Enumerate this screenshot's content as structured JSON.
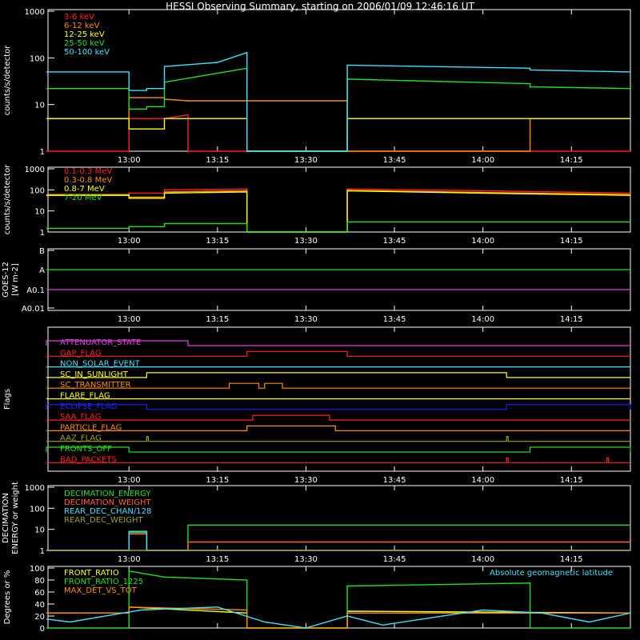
{
  "title": "HESSI Observing Summary, starting on 2006/01/09 12:46:16 UT",
  "time_ticks": [
    "13:00",
    "13:15",
    "13:30",
    "13:45",
    "14:00",
    "14:15"
  ],
  "chart_data": [
    {
      "type": "line",
      "name": "panel-counts-low",
      "ylabel": "counts/s/detector",
      "yscale": "log",
      "ylim": [
        1,
        1000
      ],
      "ytick_labels": [
        "1",
        "10",
        "100",
        "1000"
      ],
      "x_ticks": [
        "13:00",
        "13:15",
        "13:30",
        "13:45",
        "14:00",
        "14:15"
      ],
      "series": [
        {
          "name": "3-6 keV",
          "color": "#ff2020",
          "x": [
            "12:46",
            "13:00",
            "13:00",
            "13:06",
            "13:06",
            "13:10",
            "13:10",
            "13:16",
            "13:20",
            "13:37",
            "13:37",
            "13:45",
            "14:00",
            "14:08",
            "14:08",
            "14:15",
            "14:25"
          ],
          "y": [
            1,
            1,
            5,
            5,
            5,
            6,
            1,
            1,
            1,
            1,
            1,
            1,
            1,
            1,
            1,
            1,
            1
          ]
        },
        {
          "name": "6-12 keV",
          "color": "#ff8c00",
          "x": [
            "12:46",
            "13:00",
            "13:00",
            "13:06",
            "13:06",
            "13:10",
            "13:20",
            "13:37",
            "13:37",
            "14:08",
            "14:08",
            "14:25"
          ],
          "y": [
            5,
            5,
            14,
            14,
            13,
            12,
            12,
            12,
            1,
            1,
            5,
            5
          ]
        },
        {
          "name": "12-25 keV",
          "color": "#ffff00",
          "x": [
            "12:46",
            "13:00",
            "13:00",
            "13:06",
            "13:06",
            "13:20",
            "13:20",
            "13:37",
            "13:37",
            "13:50",
            "14:08",
            "14:25"
          ],
          "y": [
            5,
            5,
            3,
            3,
            5,
            5,
            1,
            1,
            5,
            5,
            5,
            5
          ]
        },
        {
          "name": "25-50 keV",
          "color": "#20e020",
          "x": [
            "12:46",
            "13:00",
            "13:00",
            "13:03",
            "13:03",
            "13:06",
            "13:06",
            "13:20",
            "13:20",
            "13:37",
            "13:37",
            "14:08",
            "14:08",
            "14:25"
          ],
          "y": [
            22,
            22,
            8,
            8,
            9,
            9,
            30,
            60,
            1,
            1,
            35,
            28,
            24,
            22
          ]
        },
        {
          "name": "50-100 keV",
          "color": "#40e0ff",
          "x": [
            "12:46",
            "13:00",
            "13:00",
            "13:03",
            "13:03",
            "13:06",
            "13:06",
            "13:15",
            "13:20",
            "13:20",
            "13:37",
            "13:37",
            "14:08",
            "14:08",
            "14:25"
          ],
          "y": [
            50,
            50,
            20,
            20,
            22,
            22,
            65,
            80,
            130,
            1,
            1,
            70,
            60,
            55,
            50
          ]
        }
      ]
    },
    {
      "type": "line",
      "name": "panel-counts-high",
      "ylabel": "counts/s/detector",
      "yscale": "log",
      "ylim": [
        1,
        1000
      ],
      "ytick_labels": [
        "1",
        "10",
        "100",
        "1000"
      ],
      "x_ticks": [
        "13:00",
        "13:15",
        "13:30",
        "13:45",
        "14:00",
        "14:15"
      ],
      "series": [
        {
          "name": "0.1-0.3 MeV",
          "color": "#ff2020",
          "x": [
            "12:46",
            "13:00",
            "13:00",
            "13:06",
            "13:06",
            "13:20",
            "13:20",
            "13:37",
            "13:37",
            "14:00",
            "14:25"
          ],
          "y": [
            60,
            60,
            70,
            70,
            100,
            110,
            1,
            1,
            110,
            90,
            70
          ]
        },
        {
          "name": "0.3-0.8 MeV",
          "color": "#ff8c00",
          "x": [
            "12:46",
            "13:00",
            "13:00",
            "13:06",
            "13:06",
            "13:20",
            "13:20",
            "13:37",
            "13:37",
            "14:00",
            "14:25"
          ],
          "y": [
            60,
            60,
            45,
            45,
            80,
            90,
            1,
            1,
            95,
            75,
            60
          ]
        },
        {
          "name": "0.8-7 MeV",
          "color": "#ffff00",
          "x": [
            "12:46",
            "13:00",
            "13:00",
            "13:06",
            "13:06",
            "13:20",
            "13:20",
            "13:37",
            "13:37",
            "14:00",
            "14:25"
          ],
          "y": [
            55,
            55,
            40,
            40,
            70,
            80,
            1,
            1,
            90,
            70,
            55
          ]
        },
        {
          "name": "7-20 MeV",
          "color": "#20e020",
          "x": [
            "12:46",
            "13:00",
            "13:00",
            "13:06",
            "13:06",
            "13:20",
            "13:20",
            "13:37",
            "13:37",
            "14:25"
          ],
          "y": [
            1.5,
            1.5,
            1.8,
            1.8,
            2.5,
            2.5,
            1,
            1,
            3,
            3
          ]
        }
      ]
    },
    {
      "type": "line",
      "name": "panel-goes",
      "ylabel": "GOES-12 [W m-2]",
      "yscale": "log",
      "ytick_labels": [
        "B",
        "A",
        "A0.1",
        "A0.01"
      ],
      "x_ticks": [
        "13:00",
        "13:15",
        "13:30",
        "13:45",
        "14:00",
        "14:15"
      ],
      "series": [
        {
          "name": "GOES long",
          "color": "#20e020",
          "level": "A",
          "x": [
            "12:46",
            "14:25"
          ]
        },
        {
          "name": "GOES short",
          "color": "#e040e0",
          "level": "A0.1",
          "x": [
            "12:46",
            "14:25"
          ]
        }
      ]
    },
    {
      "type": "line",
      "name": "panel-flags",
      "ylabel": "Flags",
      "x_ticks": [
        "13:00",
        "13:15",
        "13:30",
        "13:45",
        "14:00",
        "14:15"
      ],
      "flags": [
        {
          "name": "ATTENUATOR_STATE",
          "color": "#e040e0",
          "on": [
            [
              "12:46",
              "13:10"
            ]
          ]
        },
        {
          "name": "GAP_FLAG",
          "color": "#ff2020",
          "on": [
            [
              "13:20",
              "13:37"
            ]
          ]
        },
        {
          "name": "NON_SOLAR_EVENT",
          "color": "#40e0ff",
          "on": []
        },
        {
          "name": "SC_IN_SUNLIGHT",
          "color": "#ffff00",
          "on": [
            [
              "13:03",
              "14:04"
            ]
          ]
        },
        {
          "name": "SC_TRANSMITTER",
          "color": "#ff8c00",
          "on": [
            [
              "13:17",
              "13:22"
            ],
            [
              "13:23",
              "13:26"
            ]
          ]
        },
        {
          "name": "FLARE_FLAG",
          "color": "#ffff00",
          "on": []
        },
        {
          "name": "ECLIPSE_FLAG",
          "color": "#2020ff",
          "on": [
            [
              "12:46",
              "13:03"
            ],
            [
              "14:04",
              "14:25"
            ]
          ]
        },
        {
          "name": "SAA_FLAG",
          "color": "#ff2020",
          "on": [
            [
              "13:21",
              "13:34"
            ]
          ]
        },
        {
          "name": "PARTICLE_FLAG",
          "color": "#ff8c00",
          "on": [
            [
              "13:20",
              "13:35"
            ]
          ]
        },
        {
          "name": "AAZ_FLAG",
          "color": "#a0a020",
          "on": [
            [
              "13:03",
              "13:03"
            ],
            [
              "14:04",
              "14:04"
            ]
          ]
        },
        {
          "name": "FRONTS_OFF",
          "color": "#20e020",
          "on": [
            [
              "12:46",
              "13:00"
            ],
            [
              "14:08",
              "14:25"
            ]
          ]
        },
        {
          "name": "BAD_PACKETS",
          "color": "#ff2020",
          "on": [
            [
              "14:04",
              "14:04"
            ],
            [
              "14:21",
              "14:21"
            ]
          ]
        }
      ]
    },
    {
      "type": "line",
      "name": "panel-decimation",
      "ylabel": "DECIMATION ENERGY or weight",
      "yscale": "log",
      "ytick_labels": [
        "1",
        "10",
        "100",
        "1000"
      ],
      "x_ticks": [
        "13:00",
        "13:15",
        "13:30",
        "13:45",
        "14:00",
        "14:15"
      ],
      "series": [
        {
          "name": "DECIMATION_ENERGY",
          "color": "#20e020",
          "x": [
            "12:46",
            "13:00",
            "13:00",
            "13:03",
            "13:03",
            "13:10",
            "13:10",
            "14:25"
          ],
          "y": [
            1,
            1,
            7,
            7,
            1,
            1,
            16,
            16
          ]
        },
        {
          "name": "DECIMATION_WEIGHT",
          "color": "#ff6040",
          "x": [
            "12:46",
            "13:00",
            "13:00",
            "13:03",
            "13:03",
            "13:10",
            "13:10",
            "14:25"
          ],
          "y": [
            1,
            1,
            6,
            6,
            1,
            1,
            2.5,
            2.5
          ]
        },
        {
          "name": "REAR_DEC_CHAN/128",
          "color": "#40e0ff",
          "x": [
            "12:46",
            "13:00",
            "13:00",
            "13:03",
            "13:03",
            "14:25"
          ],
          "y": [
            1,
            1,
            8,
            8,
            1,
            1
          ]
        },
        {
          "name": "REAR_DEC_WEIGHT",
          "color": "#a0a020",
          "x": [
            "12:46",
            "14:25"
          ],
          "y": [
            1,
            1
          ]
        }
      ]
    },
    {
      "type": "line",
      "name": "panel-ratios",
      "ylabel": "Degrees or %",
      "ylim": [
        0,
        100
      ],
      "ytick_labels": [
        "0",
        "20",
        "40",
        "60",
        "80",
        "100"
      ],
      "x_ticks": [
        "13:00",
        "13:15",
        "13:30",
        "13:45",
        "14:00",
        "14:15"
      ],
      "annotation": "Absolute geomagnetic latitude",
      "annotation_color": "#40e0ff",
      "series": [
        {
          "name": "FRONT_RATIO",
          "color": "#ffff00",
          "x": [
            "12:46",
            "13:00",
            "13:00",
            "13:20",
            "13:20",
            "13:37",
            "13:37",
            "14:25"
          ],
          "y": [
            25,
            25,
            35,
            25,
            0,
            0,
            28,
            25
          ]
        },
        {
          "name": "FRONT_RATIO_1225",
          "color": "#20e020",
          "x": [
            "12:46",
            "13:00",
            "13:00",
            "13:06",
            "13:20",
            "13:20",
            "13:37",
            "13:37",
            "14:08",
            "14:08",
            "14:25"
          ],
          "y": [
            0,
            0,
            95,
            85,
            80,
            0,
            0,
            70,
            75,
            0,
            0
          ]
        },
        {
          "name": "MAX_DET_VS_TOT",
          "color": "#ff8c00",
          "x": [
            "12:46",
            "13:00",
            "13:00",
            "13:20",
            "13:20",
            "13:37",
            "13:37",
            "14:25"
          ],
          "y": [
            25,
            25,
            35,
            30,
            0,
            0,
            25,
            25
          ]
        },
        {
          "name": "Absolute geomagnetic latitude",
          "color": "#40e0ff",
          "x": [
            "12:46",
            "12:50",
            "13:02",
            "13:15",
            "13:23",
            "13:30",
            "13:37",
            "13:43",
            "14:00",
            "14:10",
            "14:18",
            "14:25"
          ],
          "y": [
            15,
            10,
            30,
            35,
            10,
            0,
            20,
            5,
            30,
            25,
            10,
            25
          ]
        }
      ]
    }
  ]
}
